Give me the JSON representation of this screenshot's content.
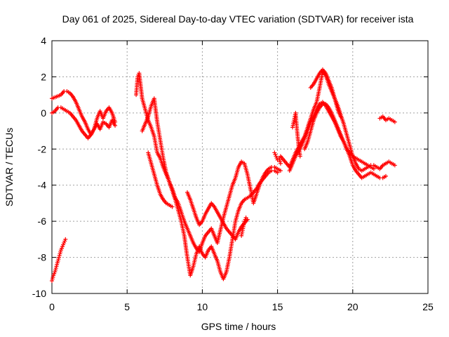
{
  "chart_data": {
    "type": "scatter",
    "title": "Day 061 of 2025, Sidereal Day-to-day VTEC variation (SDTVAR) for receiver ista",
    "xlabel": "GPS time / hours",
    "ylabel": "SDTVAR / TECUs",
    "xlim": [
      0,
      25
    ],
    "ylim": [
      -10,
      4
    ],
    "xticks": [
      0,
      5,
      10,
      15,
      20,
      25
    ],
    "yticks": [
      -10,
      -8,
      -6,
      -4,
      -2,
      0,
      2,
      4
    ],
    "xtick_labels": [
      "0",
      "5",
      "10",
      "15",
      "20",
      "25"
    ],
    "ytick_labels": [
      "-10",
      "-8",
      "-6",
      "-4",
      "-2",
      "0",
      "2",
      "4"
    ],
    "grid": true,
    "marker": "+",
    "colors": {
      "series": "#ff0000",
      "grid": "#a0a0a0",
      "axis": "#000000"
    },
    "series": [
      {
        "x": [
          0.0,
          0.3,
          0.6,
          0.8,
          1.0,
          1.2,
          1.4,
          1.6,
          1.8,
          2.0,
          2.2,
          2.4,
          2.6,
          2.8,
          3.0,
          3.2,
          3.4,
          3.6,
          3.8,
          4.0,
          4.2
        ],
        "y": [
          0.8,
          0.9,
          1.0,
          1.2,
          1.2,
          1.1,
          0.9,
          0.6,
          0.2,
          -0.2,
          -0.5,
          -0.9,
          -1.2,
          -0.9,
          -0.3,
          0.1,
          -0.3,
          0.1,
          0.3,
          0.0,
          -0.5
        ]
      },
      {
        "x": [
          0.0,
          0.2,
          0.4,
          0.6,
          0.8,
          1.0,
          1.2,
          1.4,
          1.6,
          1.8,
          2.0,
          2.2,
          2.4,
          2.6,
          2.8,
          3.0,
          3.2,
          3.4,
          3.6,
          3.8,
          4.0,
          4.2
        ],
        "y": [
          0.0,
          0.1,
          0.3,
          0.3,
          0.2,
          0.1,
          0.0,
          -0.2,
          -0.4,
          -0.7,
          -1.0,
          -1.2,
          -1.4,
          -1.2,
          -0.9,
          -0.6,
          -0.9,
          -0.5,
          -0.6,
          -0.8,
          -0.4,
          -0.7
        ]
      },
      {
        "x": [
          0.0,
          0.1,
          0.2,
          0.3,
          0.4,
          0.5,
          0.6,
          0.7,
          0.8,
          0.9
        ],
        "y": [
          -9.3,
          -9.0,
          -8.8,
          -8.5,
          -8.2,
          -7.9,
          -7.6,
          -7.4,
          -7.2,
          -7.0
        ]
      },
      {
        "x": [
          5.6,
          5.7,
          5.8,
          5.9,
          6.0,
          6.2,
          6.4,
          6.6,
          6.8,
          7.0,
          7.2,
          7.4,
          7.6,
          7.8,
          8.0,
          8.2,
          8.4,
          8.6,
          8.8,
          9.0,
          9.2,
          9.4,
          9.6,
          9.8,
          10.0,
          10.2,
          10.4,
          10.6,
          10.8,
          11.0,
          11.2,
          11.4,
          11.6,
          11.8,
          12.0,
          12.2,
          12.4,
          12.6,
          12.8,
          13.0,
          13.2,
          13.4,
          13.6,
          13.8,
          14.0,
          14.2,
          14.4,
          14.6,
          14.8,
          15.0,
          15.2
        ],
        "y": [
          1.0,
          2.0,
          2.2,
          1.5,
          0.8,
          0.2,
          -0.4,
          -0.8,
          -1.3,
          -2.2,
          -2.5,
          -3.0,
          -3.4,
          -3.8,
          -4.2,
          -4.7,
          -5.0,
          -5.5,
          -6.0,
          -6.4,
          -6.8,
          -7.2,
          -7.5,
          -7.7,
          -7.2,
          -6.8,
          -6.6,
          -6.4,
          -6.8,
          -7.2,
          -6.5,
          -5.8,
          -5.2,
          -4.6,
          -4.0,
          -3.6,
          -3.0,
          -2.7,
          -2.8,
          -3.4,
          -4.2,
          -5.0,
          -4.5,
          -4.0,
          -3.6,
          -3.3,
          -3.1,
          -3.0,
          -3.0,
          -3.1,
          -3.2
        ]
      },
      {
        "x": [
          6.0,
          6.2,
          6.4,
          6.6,
          6.8,
          7.0,
          7.2,
          7.4,
          7.6,
          7.8,
          8.0,
          8.2,
          8.4,
          8.6,
          8.8,
          9.0,
          9.2,
          9.4,
          9.6,
          9.8,
          10.0,
          10.2,
          10.4,
          10.6,
          10.8,
          11.0,
          11.2,
          11.4,
          11.6,
          11.8,
          12.0,
          12.2,
          12.4,
          12.6,
          12.8,
          13.0,
          13.2,
          13.4,
          13.6,
          13.8,
          14.0,
          14.2,
          14.4,
          14.6,
          14.8,
          15.0
        ],
        "y": [
          -1.0,
          -0.6,
          -0.2,
          0.4,
          0.8,
          -0.5,
          -1.5,
          -2.5,
          -3.3,
          -3.8,
          -4.3,
          -4.8,
          -5.4,
          -6.0,
          -6.8,
          -8.0,
          -9.0,
          -8.5,
          -7.8,
          -7.4,
          -7.8,
          -8.0,
          -7.6,
          -7.4,
          -7.8,
          -8.2,
          -8.8,
          -9.2,
          -8.8,
          -8.0,
          -7.0,
          -6.0,
          -5.4,
          -5.0,
          -4.8,
          -4.7,
          -4.6,
          -4.4,
          -4.2,
          -3.9,
          -3.7,
          -3.5,
          -3.3,
          -3.2,
          -3.2,
          -3.3
        ]
      },
      {
        "x": [
          6.4,
          6.6,
          6.8,
          7.0,
          7.2,
          7.4,
          7.6,
          7.8,
          8.0
        ],
        "y": [
          -2.2,
          -2.8,
          -3.4,
          -4.0,
          -4.5,
          -4.8,
          -5.0,
          -5.1,
          -5.2
        ]
      },
      {
        "x": [
          9.0,
          9.2,
          9.4,
          9.6,
          9.8,
          10.0,
          10.2,
          10.4,
          10.6,
          10.8,
          11.0,
          11.2,
          11.4,
          11.6,
          11.8,
          12.0,
          12.2,
          12.4,
          12.6,
          12.8,
          13.0
        ],
        "y": [
          -4.4,
          -4.8,
          -5.3,
          -5.8,
          -6.2,
          -6.0,
          -5.6,
          -5.3,
          -5.0,
          -5.2,
          -5.5,
          -5.8,
          -6.1,
          -6.4,
          -6.6,
          -6.8,
          -7.0,
          -6.6,
          -6.3,
          -6.1,
          -5.9
        ]
      },
      {
        "x": [
          15.2,
          15.4,
          15.6,
          15.8,
          16.0,
          16.2,
          16.4,
          16.6,
          16.8,
          17.0,
          17.2,
          17.4,
          17.6,
          17.8,
          18.0,
          18.2,
          18.4,
          18.6,
          18.8,
          19.0,
          19.2,
          19.4,
          19.6,
          19.8,
          20.0,
          20.2,
          20.4,
          20.6,
          20.8,
          21.0,
          21.2,
          21.4,
          21.6,
          21.8,
          22.0,
          22.2,
          22.4,
          22.6,
          22.8
        ],
        "y": [
          -2.4,
          -2.6,
          -2.8,
          -3.0,
          -2.6,
          -2.2,
          -1.9,
          -1.6,
          -1.3,
          -0.8,
          -0.3,
          0.2,
          0.6,
          1.4,
          2.3,
          2.1,
          1.6,
          1.2,
          0.8,
          0.4,
          -0.1,
          -0.6,
          -1.2,
          -1.8,
          -2.4,
          -2.8,
          -3.1,
          -3.2,
          -3.1,
          -3.0,
          -2.9,
          -2.9,
          -3.0,
          -3.1,
          -2.9,
          -2.8,
          -2.7,
          -2.8,
          -2.9
        ]
      },
      {
        "x": [
          15.8,
          16.0,
          16.2,
          16.4,
          16.6,
          16.8,
          17.0,
          17.2,
          17.4,
          17.6,
          17.8,
          18.0,
          18.2,
          18.4,
          18.6,
          18.8,
          19.0,
          19.2,
          19.4,
          19.6,
          19.8,
          20.0,
          20.2,
          20.4,
          20.6,
          20.8,
          21.0,
          21.2,
          21.4,
          21.6,
          21.8,
          22.0,
          22.2
        ],
        "y": [
          -3.2,
          -2.8,
          -2.4,
          -2.1,
          -1.8,
          -1.4,
          -1.0,
          -0.5,
          -0.2,
          0.2,
          0.5,
          0.6,
          0.4,
          0.1,
          -0.2,
          -0.5,
          -0.9,
          -1.3,
          -1.6,
          -2.0,
          -2.4,
          -2.9,
          -3.2,
          -3.4,
          -3.6,
          -3.5,
          -3.4,
          -3.3,
          -3.4,
          -3.5,
          -3.6,
          -3.6,
          -3.5
        ]
      },
      {
        "x": [
          16.8,
          17.0,
          17.2,
          17.4,
          17.6,
          17.8,
          18.0,
          18.2,
          18.4,
          18.6,
          18.8,
          19.0,
          19.2,
          19.4,
          19.6,
          19.8,
          20.0,
          20.2,
          20.4,
          20.6,
          20.8,
          21.0,
          21.2,
          21.4
        ],
        "y": [
          -2.0,
          -1.6,
          -1.0,
          -0.4,
          0.0,
          0.3,
          0.5,
          0.5,
          0.3,
          0.0,
          -0.4,
          -0.8,
          -1.2,
          -1.6,
          -2.0,
          -2.2,
          -2.4,
          -2.5,
          -2.6,
          -2.7,
          -2.8,
          -2.9,
          -3.0,
          -3.1
        ]
      },
      {
        "x": [
          16.0,
          16.1,
          16.2,
          16.3,
          16.4,
          16.5
        ],
        "y": [
          -0.8,
          -0.4,
          0.0,
          -1.0,
          -1.8,
          -2.4
        ]
      },
      {
        "x": [
          21.8,
          22.0,
          22.2,
          22.4,
          22.6,
          22.8
        ],
        "y": [
          -0.3,
          -0.2,
          -0.4,
          -0.3,
          -0.4,
          -0.5
        ]
      },
      {
        "x": [
          14.8,
          14.9,
          15.0,
          15.1,
          15.2
        ],
        "y": [
          -2.2,
          -2.4,
          -2.6,
          -2.5,
          -2.8
        ]
      },
      {
        "x": [
          12.6,
          12.7,
          12.8,
          12.9,
          13.0
        ],
        "y": [
          -6.8,
          -6.4,
          -6.0,
          -5.8,
          -5.9
        ]
      },
      {
        "x": [
          17.2,
          17.4,
          17.6,
          17.8,
          18.0,
          18.2,
          18.4,
          18.6,
          18.8,
          19.0,
          19.2
        ],
        "y": [
          1.4,
          1.6,
          1.9,
          2.2,
          2.4,
          2.2,
          1.8,
          1.4,
          0.8,
          0.2,
          -0.2
        ]
      }
    ]
  }
}
